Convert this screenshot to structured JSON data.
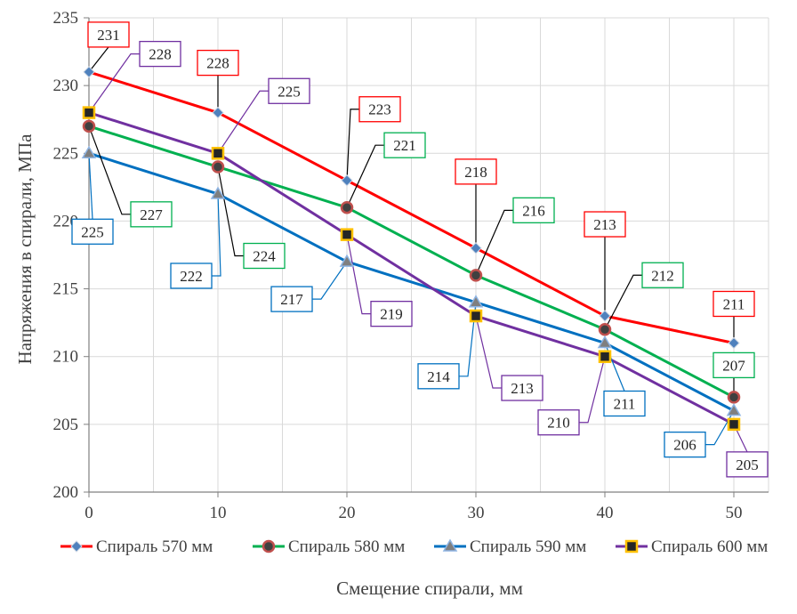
{
  "chart_data": {
    "type": "line",
    "title": "",
    "xlabel": "Смещение спирали, мм",
    "ylabel": "Напряжения в спирали, МПа",
    "x": [
      0,
      10,
      20,
      30,
      40,
      50
    ],
    "xlim": [
      0,
      50
    ],
    "ylim": [
      200,
      235
    ],
    "x_ticks": [
      "0",
      "10",
      "20",
      "30",
      "40",
      "50"
    ],
    "y_ticks": [
      "200",
      "205",
      "210",
      "215",
      "220",
      "225",
      "230",
      "235"
    ],
    "grid": true,
    "legend_position": "bottom",
    "series": [
      {
        "name": "Спираль 570 мм",
        "color": "#ff0000",
        "marker": "diamond",
        "marker_fill": "#4f81bd",
        "values": [
          231,
          228,
          223,
          218,
          213,
          211
        ],
        "labels": [
          "231",
          "228",
          "223",
          "218",
          "213",
          "211"
        ]
      },
      {
        "name": "Спираль 580 мм",
        "color": "#00b050",
        "marker": "circle",
        "marker_fill": "#c0504d",
        "values": [
          227,
          224,
          221,
          216,
          212,
          207
        ],
        "labels": [
          "227",
          "224",
          "221",
          "216",
          "212",
          "207"
        ]
      },
      {
        "name": "Спираль 590 мм",
        "color": "#0070c0",
        "marker": "triangle",
        "marker_fill": "#8eb4e3",
        "values": [
          225,
          222,
          217,
          214,
          211,
          206
        ],
        "labels": [
          "225",
          "222",
          "217",
          "214",
          "211",
          "206"
        ]
      },
      {
        "name": "Спираль 600 мм",
        "color": "#7030a0",
        "marker": "square",
        "marker_fill": "#ffc000",
        "values": [
          228,
          225,
          219,
          213,
          210,
          205
        ],
        "labels": [
          "228",
          "225",
          "219",
          "213",
          "210",
          "205"
        ]
      }
    ]
  }
}
